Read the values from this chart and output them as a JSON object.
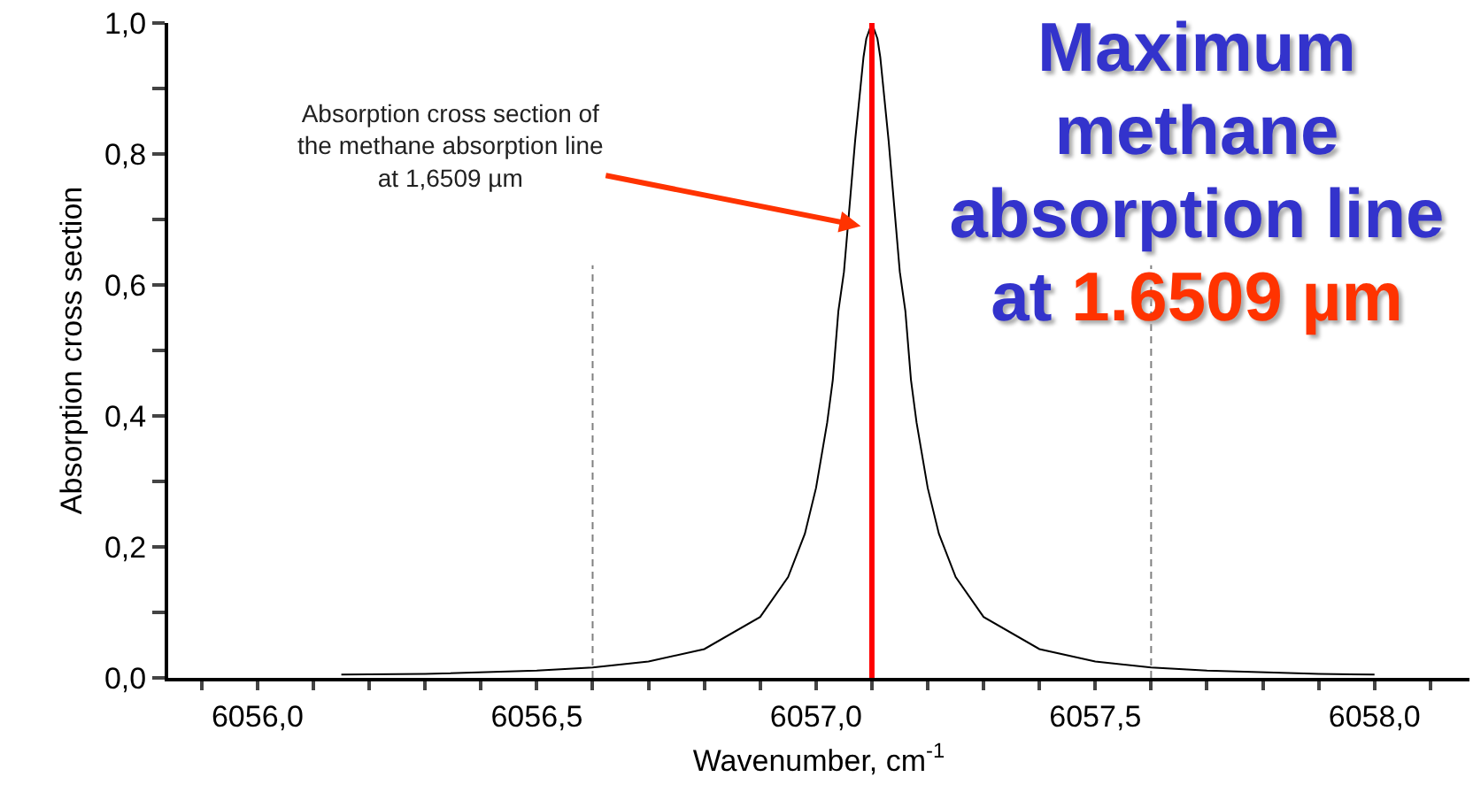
{
  "chart_data": {
    "type": "line",
    "title": "Maximum methane absorption line at 1.6509 µm",
    "xlabel": "Wavenumber, cm$^{-1}$",
    "ylabel": "Absorption cross section",
    "xlim": [
      6055.84,
      6058.17
    ],
    "xticks": [
      {
        "value": 6055.9,
        "label": null
      },
      {
        "value": 6056.0,
        "label": "6056,0"
      },
      {
        "value": 6056.1,
        "label": null
      },
      {
        "value": 6056.2,
        "label": null
      },
      {
        "value": 6056.3,
        "label": null
      },
      {
        "value": 6056.4,
        "label": null
      },
      {
        "value": 6056.5,
        "label": "6056,5"
      },
      {
        "value": 6056.6,
        "label": null
      },
      {
        "value": 6056.7,
        "label": null
      },
      {
        "value": 6056.8,
        "label": null
      },
      {
        "value": 6056.9,
        "label": null
      },
      {
        "value": 6057.0,
        "label": "6057,0"
      },
      {
        "value": 6057.1,
        "label": null
      },
      {
        "value": 6057.2,
        "label": null
      },
      {
        "value": 6057.3,
        "label": null
      },
      {
        "value": 6057.4,
        "label": null
      },
      {
        "value": 6057.5,
        "label": "6057,5"
      },
      {
        "value": 6057.6,
        "label": null
      },
      {
        "value": 6057.7,
        "label": null
      },
      {
        "value": 6057.8,
        "label": null
      },
      {
        "value": 6057.9,
        "label": null
      },
      {
        "value": 6058.0,
        "label": "6058,0"
      },
      {
        "value": 6058.1,
        "label": null
      }
    ],
    "ylim": [
      0,
      1
    ],
    "yticks": [
      {
        "value": 0,
        "label": "0,0"
      },
      {
        "value": 0.1,
        "label": null
      },
      {
        "value": 0.2,
        "label": "0,2"
      },
      {
        "value": 0.3,
        "label": null
      },
      {
        "value": 0.4,
        "label": "0,4"
      },
      {
        "value": 0.5,
        "label": null
      },
      {
        "value": 0.6,
        "label": "0,6"
      },
      {
        "value": 0.7,
        "label": null
      },
      {
        "value": 0.8,
        "label": "0,8"
      },
      {
        "value": 0.9,
        "label": null
      },
      {
        "value": 1,
        "label": "1,0"
      }
    ],
    "grid": false,
    "marker": "none",
    "series": [
      {
        "color": "#000000",
        "line_style": "solid",
        "x": [
          6056.15,
          6056.3,
          6056.5,
          6056.6,
          6056.7,
          6056.8,
          6056.9,
          6056.95,
          6056.98,
          6057.0,
          6057.02,
          6057.03,
          6057.04,
          6057.05,
          6057.06,
          6057.07,
          6057.085,
          6057.09,
          6057.1,
          6057.11,
          6057.115,
          6057.13,
          6057.14,
          6057.15,
          6057.16,
          6057.17,
          6057.18,
          6057.2,
          6057.22,
          6057.25,
          6057.3,
          6057.4,
          6057.5,
          6057.6,
          6057.7,
          6057.9,
          6058.0
        ],
        "values": [
          0.005,
          0.006,
          0.011,
          0.016,
          0.025,
          0.044,
          0.093,
          0.154,
          0.22,
          0.29,
          0.39,
          0.455,
          0.56,
          0.62,
          0.72,
          0.82,
          0.948,
          0.976,
          1.0,
          0.976,
          0.948,
          0.82,
          0.72,
          0.62,
          0.56,
          0.455,
          0.39,
          0.29,
          0.22,
          0.154,
          0.093,
          0.044,
          0.025,
          0.016,
          0.011,
          0.006,
          0.005
        ]
      },
      {
        "color": "#808080",
        "line_style": "dashed",
        "x": [
          6056.6,
          6056.6
        ],
        "values": [
          0,
          0.63
        ]
      },
      {
        "color": "#808080",
        "line_style": "dashed",
        "x": [
          6057.6,
          6057.6
        ],
        "values": [
          0,
          0.63
        ]
      },
      {
        "color": "#ff0000",
        "line_style": "solid",
        "x": [
          6057.1,
          6057.1
        ],
        "values": [
          0,
          1
        ]
      }
    ],
    "annotations": [
      {
        "text": "Absorption cross section of the methane absorption line at 1,6509 µm",
        "x": 6057.08,
        "y": 0.69
      }
    ]
  }
}
